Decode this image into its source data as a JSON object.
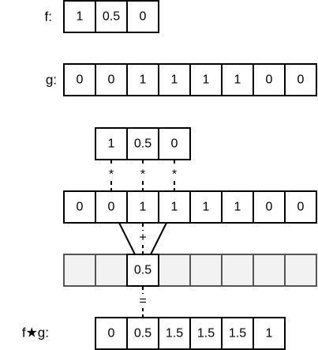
{
  "labels": {
    "f": "f:",
    "g": "g:",
    "result": "f★g:"
  },
  "f": [
    "1",
    "0.5",
    "0"
  ],
  "g": [
    "0",
    "0",
    "1",
    "1",
    "1",
    "1",
    "0",
    "0"
  ],
  "kernel_slid": [
    "1",
    "0.5",
    "0"
  ],
  "g_repeat": [
    "0",
    "0",
    "1",
    "1",
    "1",
    "1",
    "0",
    "0"
  ],
  "multiply_symbols": [
    "*",
    "*",
    "*"
  ],
  "plus_symbol": "+",
  "equals_symbol": "=",
  "current_output": "0.5",
  "result": [
    "0",
    "0.5",
    "1.5",
    "1.5",
    "1.5",
    "1"
  ]
}
